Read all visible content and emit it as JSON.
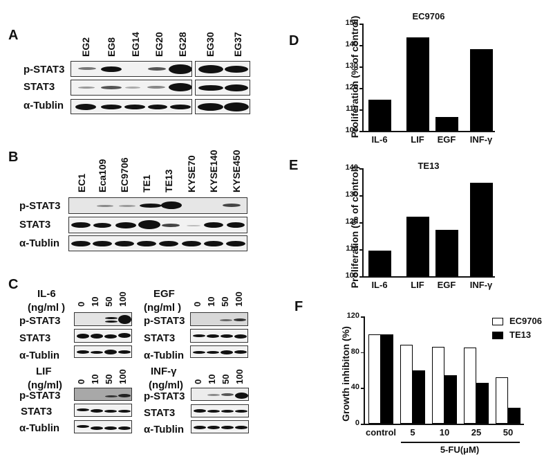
{
  "panels": {
    "A": {
      "letter": "A",
      "lanes": [
        "EG2",
        "EG8",
        "EG14",
        "EG20",
        "EG28",
        "EG30",
        "EG37"
      ],
      "rows": [
        "p-STAT3",
        "STAT3",
        "α-Tublin"
      ]
    },
    "B": {
      "letter": "B",
      "lanes": [
        "EC1",
        "Eca109",
        "EC9706",
        "TE1",
        "TE13",
        "KYSE70",
        "KYSE140",
        "KYSE450"
      ],
      "rows": [
        "p-STAT3",
        "STAT3",
        "α-Tublin"
      ]
    },
    "C": {
      "letter": "C",
      "sub": [
        {
          "treatment": "IL-6",
          "unit": "(ng/ml )",
          "doses": [
            "0",
            "10",
            "50",
            "100"
          ],
          "rows": [
            "p-STAT3",
            "STAT3",
            "α-Tublin"
          ]
        },
        {
          "treatment": "EGF",
          "unit": "(ng/ml )",
          "doses": [
            "0",
            "10",
            "50",
            "100"
          ],
          "rows": [
            "p-STAT3",
            "STAT3",
            "α-Tublin"
          ]
        },
        {
          "treatment": "LIF",
          "unit": "(ng/ml)",
          "doses": [
            "0",
            "10",
            "50",
            "100"
          ],
          "rows": [
            "p-STAT3",
            "STAT3",
            "α-Tublin"
          ]
        },
        {
          "treatment": "INF-γ",
          "unit": "(ng/ml)",
          "doses": [
            "0",
            "10",
            "50",
            "100"
          ],
          "rows": [
            "p-STAT3",
            "STAT3",
            "α-Tublin"
          ]
        }
      ]
    },
    "D": {
      "letter": "D"
    },
    "E": {
      "letter": "E"
    },
    "F": {
      "letter": "F"
    }
  },
  "chart_data": [
    {
      "panel": "D",
      "type": "bar",
      "title": "EC9706",
      "xlabel": "",
      "ylabel": "Proliferation (% of control)",
      "categories": [
        "IL-6",
        "LIF",
        "EGF",
        "INF-γ"
      ],
      "values": [
        114.5,
        143.5,
        106.3,
        138
      ],
      "ylim": [
        100,
        150
      ],
      "yticks": [
        "100",
        "110",
        "120",
        "130",
        "140",
        "150"
      ],
      "grid": false
    },
    {
      "panel": "E",
      "type": "bar",
      "title": "TE13",
      "xlabel": "",
      "ylabel": "Proliferation (% of control)",
      "categories": [
        "IL-6",
        "LIF",
        "EGF",
        "INF-γ"
      ],
      "values": [
        109.4,
        122.1,
        117.1,
        134.5
      ],
      "ylim": [
        100,
        140
      ],
      "yticks": [
        "100",
        "110",
        "120",
        "130",
        "140"
      ],
      "grid": false
    },
    {
      "panel": "F",
      "type": "bar",
      "title": "",
      "xlabel": "5-FU(μM)",
      "ylabel": "Growth inhibiton (%)",
      "categories": [
        "control",
        "5",
        "10",
        "25",
        "50"
      ],
      "series": [
        {
          "name": "EC9706",
          "color": "#ffffff",
          "values": [
            100,
            88.6,
            86,
            85.2,
            51.8
          ]
        },
        {
          "name": "TE13",
          "color": "#000000",
          "values": [
            100,
            59.3,
            54.4,
            45.3,
            18
          ]
        }
      ],
      "ylim": [
        0,
        120
      ],
      "yticks": [
        "0",
        "40",
        "80",
        "120"
      ],
      "legend_position": "top-right",
      "grid": false
    }
  ]
}
